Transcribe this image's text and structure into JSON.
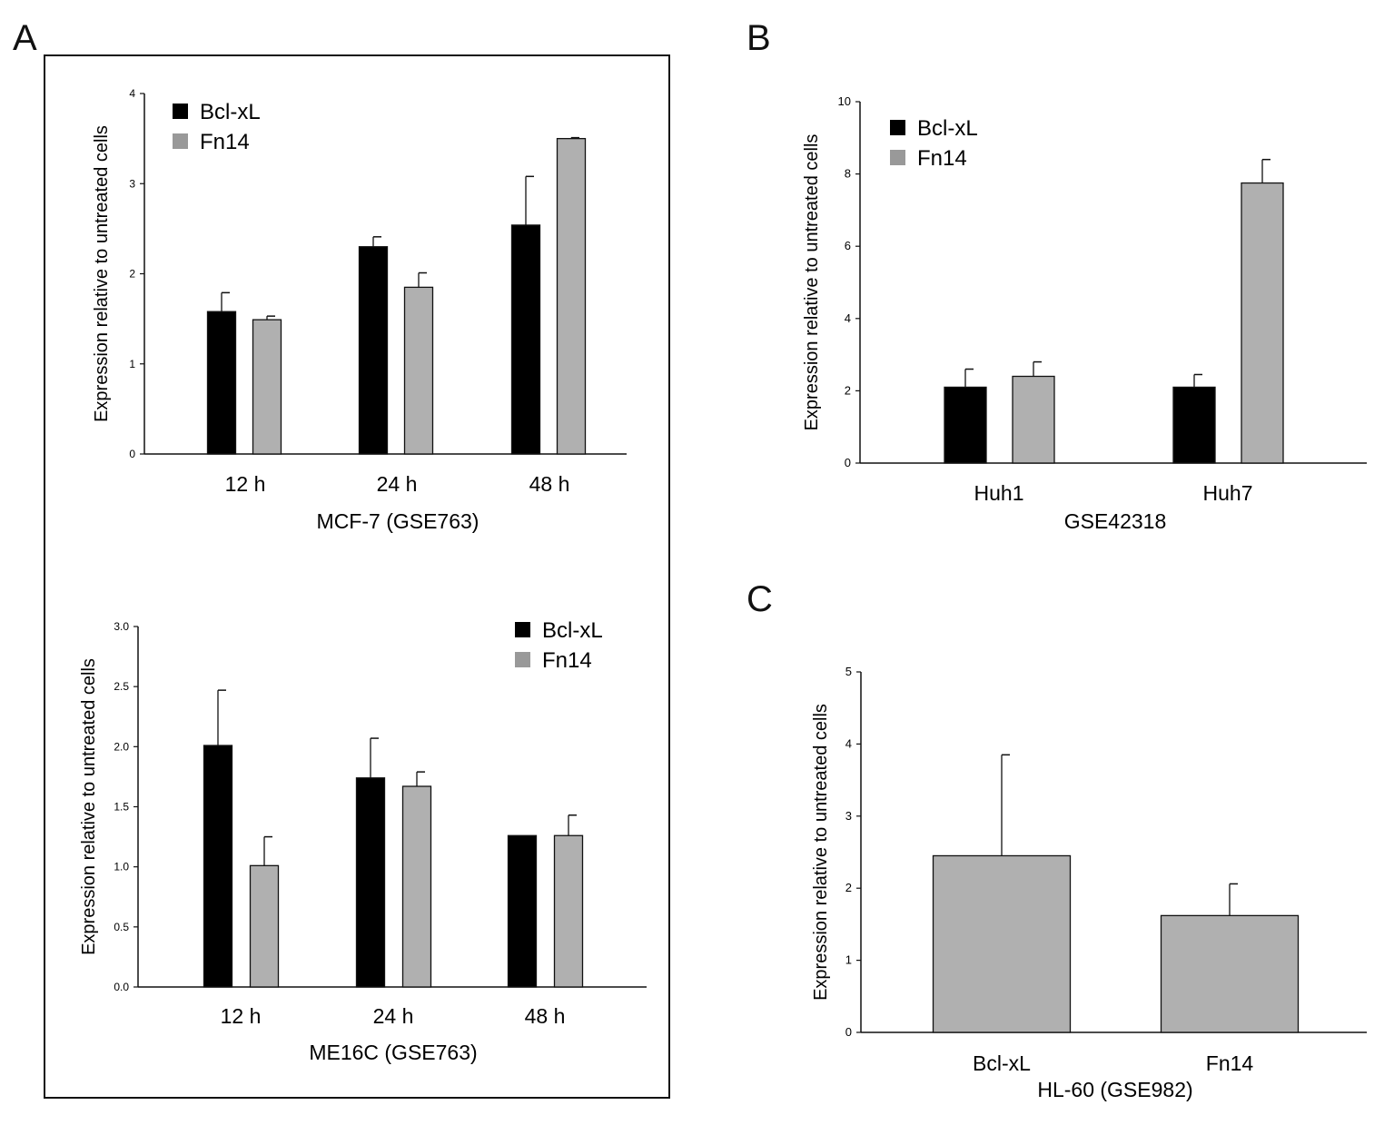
{
  "panels": {
    "a": "A",
    "b": "B",
    "c": "C"
  },
  "colors": {
    "bcl_xl": "#000000",
    "fn14": "#b0b0b0",
    "fn14_legend": "#999999"
  },
  "chart_data": [
    {
      "id": "A-top",
      "type": "bar",
      "title": "",
      "xlabel": "MCF-7 (GSE763)",
      "ylabel": "Expression relative to untreated cells",
      "ylim": [
        0,
        4
      ],
      "yticks": [
        "0",
        "1",
        "2",
        "3",
        "4"
      ],
      "ytick_values": [
        0,
        1,
        2,
        3,
        4
      ],
      "categories": [
        "12 h",
        "24 h",
        "48 h"
      ],
      "legend": [
        "Bcl-xL",
        "Fn14"
      ],
      "legend_position": "top-left",
      "series": [
        {
          "name": "Bcl-xL",
          "values": [
            1.58,
            2.3,
            2.54
          ],
          "error_top": [
            1.79,
            2.41,
            3.08
          ]
        },
        {
          "name": "Fn14",
          "values": [
            1.49,
            1.85,
            3.5
          ],
          "error_top": [
            1.53,
            2.01,
            3.51
          ]
        }
      ]
    },
    {
      "id": "A-bottom",
      "type": "bar",
      "title": "",
      "xlabel": "ME16C (GSE763)",
      "ylabel": "Expression relative to untreated cells",
      "ylim": [
        0,
        3
      ],
      "yticks": [
        "0.0",
        "0.5",
        "1.0",
        "1.5",
        "2.0",
        "2.5",
        "3.0"
      ],
      "ytick_values": [
        0,
        0.5,
        1,
        1.5,
        2,
        2.5,
        3
      ],
      "categories": [
        "12 h",
        "24 h",
        "48 h"
      ],
      "legend": [
        "Bcl-xL",
        "Fn14"
      ],
      "legend_position": "top-right",
      "series": [
        {
          "name": "Bcl-xL",
          "values": [
            2.01,
            1.74,
            1.26
          ],
          "error_top": [
            2.47,
            2.07,
            null
          ]
        },
        {
          "name": "Fn14",
          "values": [
            1.01,
            1.67,
            1.26
          ],
          "error_top": [
            1.25,
            1.79,
            1.43
          ]
        }
      ]
    },
    {
      "id": "B",
      "type": "bar",
      "title": "",
      "xlabel": "GSE42318",
      "ylabel": "Expression relative to untreated cells",
      "ylim": [
        0,
        10
      ],
      "yticks": [
        "0",
        "2",
        "4",
        "6",
        "8",
        "10"
      ],
      "ytick_values": [
        0,
        2,
        4,
        6,
        8,
        10
      ],
      "categories": [
        "Huh1",
        "Huh7"
      ],
      "legend": [
        "Bcl-xL",
        "Fn14"
      ],
      "legend_position": "top-left",
      "series": [
        {
          "name": "Bcl-xL",
          "values": [
            2.1,
            2.1
          ],
          "error_top": [
            2.6,
            2.45
          ]
        },
        {
          "name": "Fn14",
          "values": [
            2.4,
            7.75
          ],
          "error_top": [
            2.8,
            8.4
          ]
        }
      ]
    },
    {
      "id": "C",
      "type": "bar",
      "title": "",
      "xlabel": "HL-60 (GSE982)",
      "ylabel": "Expression relative to untreated cells",
      "ylim": [
        0,
        5
      ],
      "yticks": [
        "0",
        "1",
        "2",
        "3",
        "4",
        "5"
      ],
      "ytick_values": [
        0,
        1,
        2,
        3,
        4,
        5
      ],
      "categories": [
        "Bcl-xL",
        "Fn14"
      ],
      "legend": [],
      "legend_position": "none",
      "series": [
        {
          "name": "Expression",
          "values": [
            2.45,
            1.62
          ],
          "error_top": [
            3.85,
            2.06
          ]
        }
      ]
    }
  ]
}
